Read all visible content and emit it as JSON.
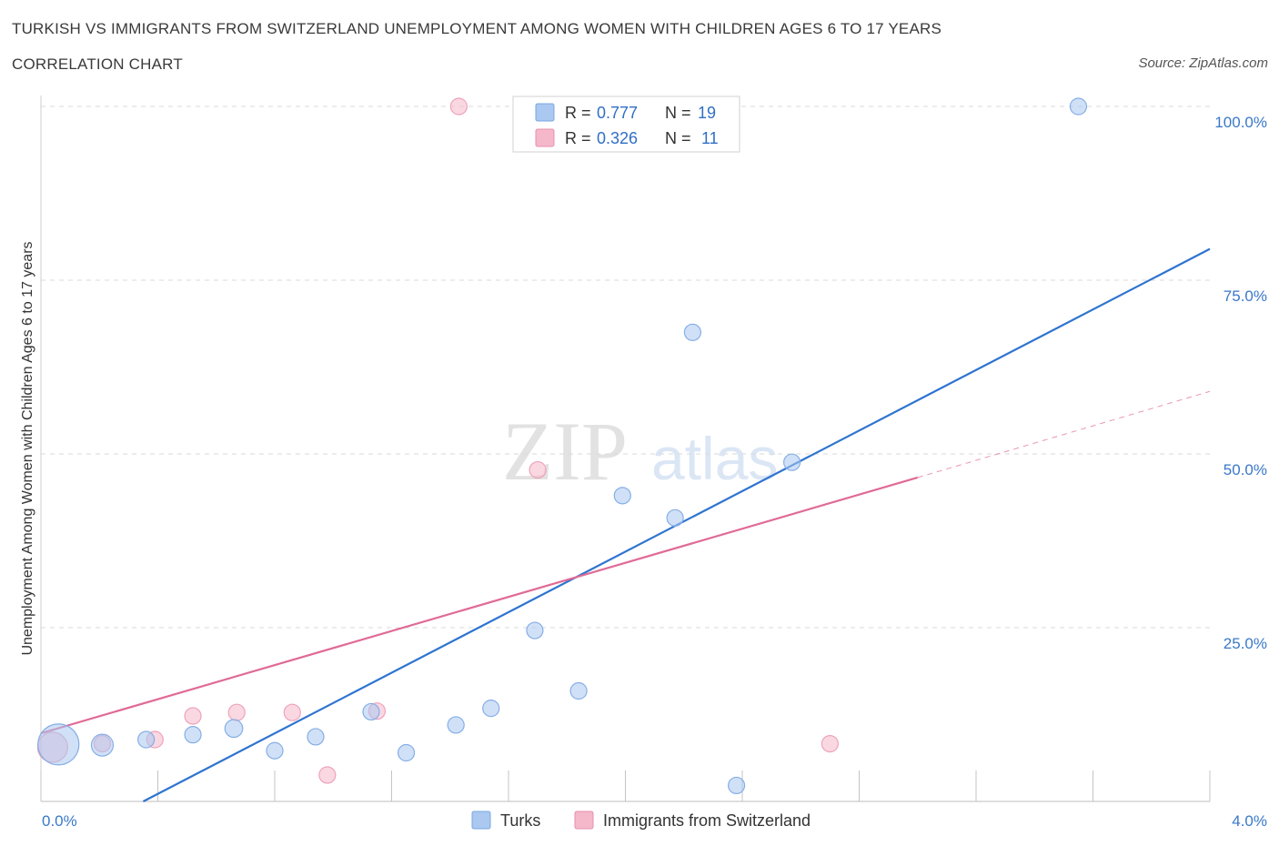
{
  "header": {
    "title": "TURKISH VS IMMIGRANTS FROM SWITZERLAND UNEMPLOYMENT AMONG WOMEN WITH CHILDREN AGES 6 TO 17 YEARS",
    "subtitle": "CORRELATION CHART",
    "source": "Source: ZipAtlas.com"
  },
  "watermark": {
    "zip": "ZIP",
    "atlas": "atlas"
  },
  "colors": {
    "turks_fill": "#aac8f0",
    "turks_line": "#2e74d0",
    "swiss_fill": "#f5b8ca",
    "swiss_line": "#e06a96",
    "tick_text": "#3a78c9",
    "grid": "#d9d9d9"
  },
  "stats_legend": {
    "turks": {
      "r_label": "R = ",
      "r_value": "0.777",
      "n_label": "N = ",
      "n_value": "19"
    },
    "swiss": {
      "r_label": "R = ",
      "r_value": "0.326",
      "n_label": "N = ",
      "n_value": "11"
    }
  },
  "chart_data": {
    "type": "scatter",
    "title": "TURKISH VS IMMIGRANTS FROM SWITZERLAND UNEMPLOYMENT AMONG WOMEN WITH CHILDREN AGES 6 TO 17 YEARS",
    "xlabel": "",
    "ylabel": "Unemployment Among Women with Children Ages 6 to 17 years",
    "xlim": [
      0,
      4.0
    ],
    "ylim": [
      0,
      100
    ],
    "x_tick_labels": [
      "0.0%",
      "4.0%"
    ],
    "y_tick_labels": [
      "100.0%",
      "75.0%",
      "50.0%",
      "25.0%"
    ],
    "y_ticks": [
      100,
      75,
      50,
      25
    ],
    "legend": [
      "Turks",
      "Immigrants from Switzerland"
    ],
    "series": [
      {
        "name": "Turks",
        "points": [
          {
            "x": 0.06,
            "y": 8.2,
            "size": 3
          },
          {
            "x": 0.21,
            "y": 8.1,
            "size": 1.6
          },
          {
            "x": 0.36,
            "y": 8.9,
            "size": 1.2
          },
          {
            "x": 0.52,
            "y": 9.6,
            "size": 1.2
          },
          {
            "x": 0.66,
            "y": 10.5,
            "size": 1.3
          },
          {
            "x": 0.8,
            "y": 7.3,
            "size": 1.2
          },
          {
            "x": 0.94,
            "y": 9.3,
            "size": 1.2
          },
          {
            "x": 1.13,
            "y": 12.9,
            "size": 1.2
          },
          {
            "x": 1.25,
            "y": 7.0,
            "size": 1.2
          },
          {
            "x": 1.42,
            "y": 11.0,
            "size": 1.2
          },
          {
            "x": 1.54,
            "y": 13.4,
            "size": 1.2
          },
          {
            "x": 1.69,
            "y": 24.6,
            "size": 1.2
          },
          {
            "x": 1.84,
            "y": 15.9,
            "size": 1.2
          },
          {
            "x": 1.99,
            "y": 44.0,
            "size": 1.2
          },
          {
            "x": 2.17,
            "y": 40.8,
            "size": 1.2
          },
          {
            "x": 2.23,
            "y": 67.5,
            "size": 1.2
          },
          {
            "x": 2.38,
            "y": 2.3,
            "size": 1.2
          },
          {
            "x": 2.57,
            "y": 48.8,
            "size": 1.2
          },
          {
            "x": 3.55,
            "y": 100.0,
            "size": 1.2
          }
        ],
        "trend": {
          "x": [
            0.35,
            4.0
          ],
          "y": [
            0.0,
            79.5
          ]
        }
      },
      {
        "name": "Immigrants from Switzerland",
        "points": [
          {
            "x": 0.04,
            "y": 7.8,
            "size": 2.2
          },
          {
            "x": 0.21,
            "y": 8.3,
            "size": 1.2
          },
          {
            "x": 0.39,
            "y": 8.9,
            "size": 1.2
          },
          {
            "x": 0.52,
            "y": 12.3,
            "size": 1.2
          },
          {
            "x": 0.67,
            "y": 12.8,
            "size": 1.2
          },
          {
            "x": 0.86,
            "y": 12.8,
            "size": 1.2
          },
          {
            "x": 0.98,
            "y": 3.8,
            "size": 1.2
          },
          {
            "x": 1.15,
            "y": 13.0,
            "size": 1.2
          },
          {
            "x": 1.43,
            "y": 100.0,
            "size": 1.2
          },
          {
            "x": 1.7,
            "y": 47.7,
            "size": 1.2
          },
          {
            "x": 2.7,
            "y": 8.3,
            "size": 1.2
          }
        ],
        "trend": {
          "x": [
            0.0,
            3.0
          ],
          "y": [
            9.8,
            46.6
          ]
        },
        "trend_extension": {
          "x": [
            3.0,
            4.0
          ],
          "y": [
            46.6,
            59.0
          ]
        }
      }
    ]
  }
}
